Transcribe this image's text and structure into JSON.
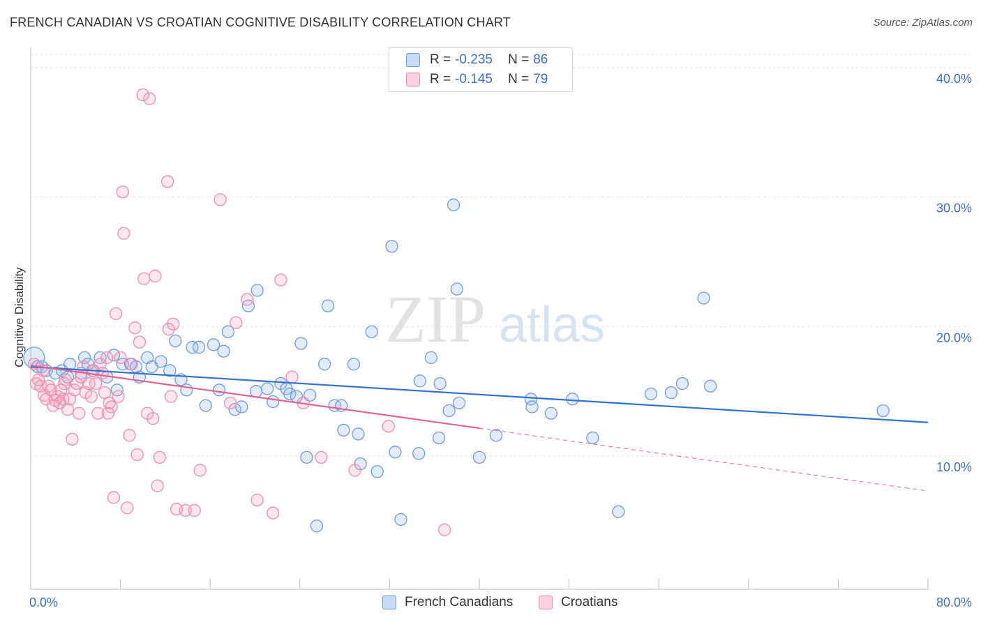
{
  "header": {
    "title": "FRENCH CANADIAN VS CROATIAN COGNITIVE DISABILITY CORRELATION CHART",
    "source": "Source: ZipAtlas.com"
  },
  "watermark": {
    "zip": "ZIP",
    "atlas": "atlas"
  },
  "legend": {
    "rows": [
      {
        "r_label": "R =",
        "r_value": "-0.235",
        "n_label": "N =",
        "n_value": "86",
        "color": "#6a9be0"
      },
      {
        "r_label": "R =",
        "r_value": "-0.145",
        "n_label": "N =",
        "n_value": "79",
        "color": "#f08cab"
      }
    ]
  },
  "bottom_legend": {
    "items": [
      {
        "label": "French Canadians",
        "color": "#6a9be0"
      },
      {
        "label": "Croatians",
        "color": "#f08cab"
      }
    ]
  },
  "chart_data": {
    "type": "scatter",
    "title": "FRENCH CANADIAN VS CROATIAN COGNITIVE DISABILITY CORRELATION CHART",
    "xlabel": "",
    "ylabel": "Cognitive Disability",
    "xlim": [
      0,
      80
    ],
    "ylim": [
      0,
      42
    ],
    "x_tick_labels": [
      "0.0%",
      "80.0%"
    ],
    "y_ticks": [
      10,
      20,
      30,
      40
    ],
    "y_tick_labels": [
      "10.0%",
      "20.0%",
      "30.0%",
      "40.0%"
    ],
    "grid": "horizontal dashed",
    "legend_position": "top-center",
    "series": [
      {
        "name": "French Canadians",
        "color": "#6a9be0",
        "trend": {
          "x0": 0,
          "y0": 16.9,
          "x1": 80,
          "y1": 12.6,
          "dashed_from": null
        },
        "points": [
          [
            0.3,
            17.6
          ],
          [
            0.6,
            16.9
          ],
          [
            1.0,
            16.9
          ],
          [
            1.4,
            16.6
          ],
          [
            2.2,
            16.4
          ],
          [
            2.8,
            16.6
          ],
          [
            3.3,
            16.1
          ],
          [
            3.5,
            17.1
          ],
          [
            4.5,
            16.4
          ],
          [
            4.8,
            17.6
          ],
          [
            5.1,
            17.1
          ],
          [
            5.5,
            16.6
          ],
          [
            6.2,
            17.6
          ],
          [
            6.8,
            16.1
          ],
          [
            7.4,
            17.8
          ],
          [
            7.7,
            15.1
          ],
          [
            8.2,
            17.1
          ],
          [
            8.9,
            17.1
          ],
          [
            9.4,
            16.9
          ],
          [
            9.7,
            16.1
          ],
          [
            10.4,
            17.6
          ],
          [
            10.8,
            16.9
          ],
          [
            11.6,
            17.3
          ],
          [
            12.4,
            16.6
          ],
          [
            12.9,
            18.9
          ],
          [
            13.4,
            15.9
          ],
          [
            13.9,
            15.1
          ],
          [
            14.4,
            18.4
          ],
          [
            15.0,
            18.4
          ],
          [
            15.6,
            13.9
          ],
          [
            16.3,
            18.6
          ],
          [
            16.8,
            15.1
          ],
          [
            17.2,
            18.1
          ],
          [
            17.6,
            19.6
          ],
          [
            18.2,
            13.6
          ],
          [
            18.8,
            13.8
          ],
          [
            19.4,
            21.6
          ],
          [
            20.1,
            15.0
          ],
          [
            20.2,
            22.8
          ],
          [
            21.1,
            15.2
          ],
          [
            21.6,
            14.2
          ],
          [
            22.3,
            15.6
          ],
          [
            22.8,
            15.2
          ],
          [
            23.1,
            14.8
          ],
          [
            23.7,
            14.6
          ],
          [
            24.1,
            18.7
          ],
          [
            24.6,
            9.9
          ],
          [
            24.9,
            14.7
          ],
          [
            25.5,
            4.6
          ],
          [
            26.2,
            17.1
          ],
          [
            26.5,
            21.6
          ],
          [
            27.1,
            13.9
          ],
          [
            27.7,
            13.9
          ],
          [
            27.9,
            12.0
          ],
          [
            28.8,
            17.1
          ],
          [
            29.2,
            11.7
          ],
          [
            29.4,
            9.4
          ],
          [
            30.4,
            19.6
          ],
          [
            30.9,
            8.8
          ],
          [
            32.2,
            26.2
          ],
          [
            32.5,
            10.3
          ],
          [
            33.0,
            5.1
          ],
          [
            34.6,
            10.2
          ],
          [
            34.7,
            15.8
          ],
          [
            35.7,
            17.6
          ],
          [
            36.4,
            11.4
          ],
          [
            36.5,
            15.6
          ],
          [
            37.3,
            13.5
          ],
          [
            37.7,
            29.4
          ],
          [
            38.0,
            22.9
          ],
          [
            38.2,
            14.1
          ],
          [
            40.0,
            9.9
          ],
          [
            41.5,
            11.6
          ],
          [
            44.6,
            14.4
          ],
          [
            44.7,
            13.8
          ],
          [
            46.4,
            13.3
          ],
          [
            48.3,
            14.4
          ],
          [
            50.1,
            11.4
          ],
          [
            52.4,
            5.7
          ],
          [
            55.3,
            14.8
          ],
          [
            57.1,
            14.9
          ],
          [
            58.1,
            15.6
          ],
          [
            60.0,
            22.2
          ],
          [
            60.6,
            15.4
          ],
          [
            76.0,
            13.5
          ]
        ]
      },
      {
        "name": "Croatians",
        "color": "#f08cab",
        "trend": {
          "x0": 0,
          "y0": 17.0,
          "x1": 80,
          "y1": 7.3,
          "dashed_from": 40
        },
        "points": [
          [
            0.3,
            17.1
          ],
          [
            0.5,
            15.6
          ],
          [
            0.7,
            15.9
          ],
          [
            0.9,
            15.4
          ],
          [
            1.2,
            14.7
          ],
          [
            1.4,
            14.4
          ],
          [
            1.6,
            15.4
          ],
          [
            1.8,
            15.1
          ],
          [
            2.0,
            13.9
          ],
          [
            2.2,
            14.3
          ],
          [
            2.4,
            14.6
          ],
          [
            2.6,
            14.1
          ],
          [
            2.9,
            14.4
          ],
          [
            3.1,
            15.9
          ],
          [
            3.3,
            13.6
          ],
          [
            3.5,
            14.4
          ],
          [
            3.7,
            11.3
          ],
          [
            3.9,
            15.1
          ],
          [
            4.1,
            15.6
          ],
          [
            4.3,
            13.3
          ],
          [
            4.5,
            16.1
          ],
          [
            4.7,
            16.9
          ],
          [
            4.9,
            14.9
          ],
          [
            5.2,
            15.6
          ],
          [
            5.4,
            14.6
          ],
          [
            5.6,
            16.6
          ],
          [
            5.8,
            15.6
          ],
          [
            6.0,
            13.3
          ],
          [
            6.2,
            17.1
          ],
          [
            6.4,
            16.4
          ],
          [
            6.6,
            14.9
          ],
          [
            6.8,
            17.6
          ],
          [
            7.0,
            14.1
          ],
          [
            7.2,
            13.8
          ],
          [
            7.4,
            6.8
          ],
          [
            7.6,
            21.0
          ],
          [
            7.8,
            14.6
          ],
          [
            8.0,
            17.6
          ],
          [
            8.2,
            30.4
          ],
          [
            8.3,
            27.2
          ],
          [
            8.6,
            6.0
          ],
          [
            8.8,
            11.6
          ],
          [
            9.0,
            17.1
          ],
          [
            9.3,
            19.9
          ],
          [
            9.5,
            10.1
          ],
          [
            9.7,
            18.8
          ],
          [
            10.0,
            37.9
          ],
          [
            10.1,
            23.7
          ],
          [
            10.4,
            13.3
          ],
          [
            10.6,
            37.6
          ],
          [
            10.9,
            12.9
          ],
          [
            11.1,
            23.9
          ],
          [
            11.3,
            7.7
          ],
          [
            11.5,
            9.9
          ],
          [
            12.2,
            31.2
          ],
          [
            12.3,
            19.8
          ],
          [
            12.5,
            14.6
          ],
          [
            12.7,
            20.2
          ],
          [
            13.0,
            5.9
          ],
          [
            13.8,
            5.8
          ],
          [
            14.6,
            5.8
          ],
          [
            15.1,
            8.9
          ],
          [
            16.9,
            29.8
          ],
          [
            17.8,
            14.1
          ],
          [
            18.3,
            20.3
          ],
          [
            19.3,
            22.1
          ],
          [
            20.2,
            6.6
          ],
          [
            21.6,
            5.6
          ],
          [
            22.3,
            23.6
          ],
          [
            23.3,
            16.1
          ],
          [
            24.3,
            14.1
          ],
          [
            25.9,
            9.9
          ],
          [
            28.9,
            8.9
          ],
          [
            31.9,
            12.3
          ],
          [
            36.9,
            4.3
          ],
          [
            6.9,
            13.3
          ],
          [
            3.0,
            15.6
          ],
          [
            1.1,
            16.6
          ],
          [
            2.7,
            15.1
          ]
        ]
      }
    ]
  }
}
